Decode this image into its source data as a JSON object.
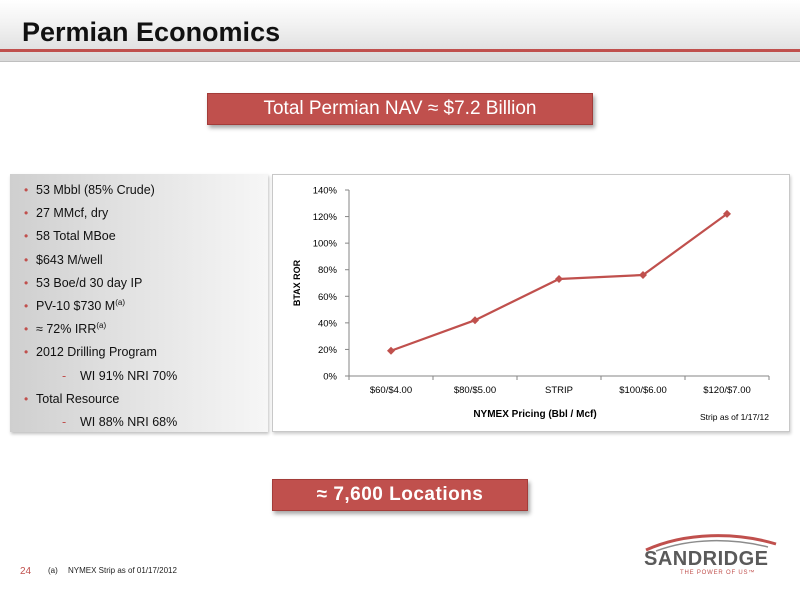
{
  "header": {
    "title": "Permian Economics"
  },
  "banners": {
    "nav": "Total Permian NAV ≈ $7.2 Billion",
    "locations": "≈ 7,600  Locations"
  },
  "bullets": [
    {
      "level": 1,
      "mark": "•",
      "text": "53 Mbbl  (85% Crude)"
    },
    {
      "level": 1,
      "mark": "•",
      "text": "27 MMcf, dry"
    },
    {
      "level": 1,
      "mark": "•",
      "text": "58 Total MBoe"
    },
    {
      "level": 1,
      "mark": "•",
      "text": "$643 M/well"
    },
    {
      "level": 1,
      "mark": "•",
      "text": "53 Boe/d 30 day IP"
    },
    {
      "level": 1,
      "mark": "•",
      "text": "PV-10 $730 M",
      "sup": "(a)"
    },
    {
      "level": 1,
      "mark": "•",
      "text": "≈ 72% IRR",
      "sup": "(a)"
    },
    {
      "level": 1,
      "mark": "•",
      "text": "2012 Drilling Program"
    },
    {
      "level": 2,
      "mark": "-",
      "text": "WI 91% NRI 70%"
    },
    {
      "level": 1,
      "mark": "•",
      "text": "Total Resource"
    },
    {
      "level": 2,
      "mark": "-",
      "text": "WI 88% NRI 68%"
    }
  ],
  "chart_data": {
    "type": "line",
    "categories": [
      "$60/$4.00",
      "$80/$5.00",
      "STRIP",
      "$100/$6.00",
      "$120/$7.00"
    ],
    "series": [
      {
        "values": [
          19,
          42,
          73,
          76,
          122
        ],
        "color": "#c0504d"
      }
    ],
    "ylabel": "BTAX  ROR",
    "xlabel": "NYMEX Pricing  (Bbl  / Mcf)",
    "ylim": [
      0,
      140
    ],
    "yticks": [
      0,
      20,
      40,
      60,
      80,
      100,
      120,
      140
    ],
    "ytick_labels": [
      "0%",
      "20%",
      "40%",
      "60%",
      "80%",
      "100%",
      "120%",
      "140%"
    ],
    "note": "Strip as of 1/17/12",
    "grid": false,
    "legend": "none"
  },
  "footer": {
    "page_number": "24",
    "footnote_mark": "(a)",
    "footnote_text": "NYMEX Strip as of 01/17/2012"
  },
  "logo": {
    "name": "SandRidge",
    "text": "SANDRIDGE",
    "tagline": "THE POWER OF US™"
  },
  "colors": {
    "accent": "#c0504d"
  }
}
